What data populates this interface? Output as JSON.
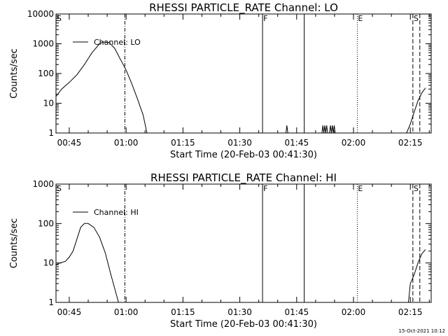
{
  "footer": {
    "timestamp": "15-Oct-2021 10:12"
  },
  "chart_data": [
    {
      "type": "line",
      "title": "RHESSI PARTICLE_RATE Channel: LO",
      "xlabel": "Start Time (20-Feb-03 00:41:30)",
      "ylabel": "Counts/sec",
      "yscale": "log",
      "xlim": [
        "00:41:30",
        "02:20:30"
      ],
      "ylim": [
        1,
        10000
      ],
      "x_ticks": [
        "00:45",
        "01:00",
        "01:15",
        "01:30",
        "01:45",
        "02:00",
        "02:15"
      ],
      "y_ticks": [
        "1",
        "10",
        "100",
        "1000",
        "10000"
      ],
      "legend": {
        "position": "top-left",
        "entries": [
          "Channel: LO"
        ]
      },
      "series": [
        {
          "name": "Channel: LO",
          "segments": [
            [
              [
                "00:41:30",
                17
              ],
              [
                "00:43:00",
                30
              ],
              [
                "00:45:00",
                50
              ],
              [
                "00:47:00",
                90
              ],
              [
                "00:49:00",
                200
              ],
              [
                "00:51:00",
                500
              ],
              [
                "00:53:00",
                1000
              ],
              [
                "00:54:00",
                1150
              ],
              [
                "00:55:30",
                1100
              ],
              [
                "00:57:00",
                700
              ],
              [
                "00:58:30",
                300
              ],
              [
                "01:00:00",
                130
              ],
              [
                "01:01:30",
                45
              ],
              [
                "01:03:00",
                14
              ],
              [
                "01:04:30",
                4
              ],
              [
                "01:05:30",
                1
              ]
            ],
            [
              [
                "01:42:10",
                1
              ],
              [
                "01:42:25",
                1.8
              ],
              [
                "01:42:40",
                1
              ]
            ],
            [
              [
                "01:51:40",
                1
              ],
              [
                "01:51:55",
                1.8
              ],
              [
                "01:52:10",
                1
              ],
              [
                "01:52:25",
                1.8
              ],
              [
                "01:52:40",
                1
              ],
              [
                "01:52:55",
                1.8
              ],
              [
                "01:53:10",
                1
              ]
            ],
            [
              [
                "01:53:40",
                1
              ],
              [
                "01:53:55",
                1.8
              ],
              [
                "01:54:10",
                1
              ],
              [
                "01:54:25",
                1.8
              ],
              [
                "01:54:40",
                1
              ],
              [
                "01:54:55",
                1.8
              ],
              [
                "01:55:10",
                1
              ]
            ],
            [
              [
                "02:14:00",
                1
              ],
              [
                "02:15:00",
                2
              ],
              [
                "02:16:00",
                5
              ],
              [
                "02:17:00",
                12
              ],
              [
                "02:18:00",
                22
              ],
              [
                "02:19:00",
                33
              ]
            ]
          ]
        }
      ],
      "markers": [
        {
          "label": "S",
          "time": "00:41:30",
          "style": "dashed"
        },
        {
          "label": "",
          "time": "00:59:40",
          "style": "dashdot"
        },
        {
          "label": "F",
          "time": "01:36:00",
          "style": "solid"
        },
        {
          "label": "",
          "time": "01:47:00",
          "style": "solid"
        },
        {
          "label": "E",
          "time": "02:01:00",
          "style": "dotted"
        },
        {
          "label": "S",
          "time": "02:15:40",
          "style": "dashed"
        },
        {
          "label": "",
          "time": "02:17:30",
          "style": "dashed"
        }
      ]
    },
    {
      "type": "line",
      "title": "RHESSI PARTICLE_RATE Channel: HI",
      "xlabel": "Start Time (20-Feb-03 00:41:30)",
      "ylabel": "Counts/sec",
      "yscale": "log",
      "xlim": [
        "00:41:30",
        "02:20:30"
      ],
      "ylim": [
        1,
        1000
      ],
      "x_ticks": [
        "00:45",
        "01:00",
        "01:15",
        "01:30",
        "01:45",
        "02:00",
        "02:15"
      ],
      "y_ticks": [
        "1",
        "10",
        "100",
        "1000"
      ],
      "legend": {
        "position": "top-left",
        "entries": [
          "Channel: HI"
        ]
      },
      "series": [
        {
          "name": "Channel: HI",
          "segments": [
            [
              [
                "00:41:30",
                9
              ],
              [
                "00:42:30",
                10
              ],
              [
                "00:44:00",
                11
              ],
              [
                "00:45:00",
                14
              ],
              [
                "00:46:00",
                20
              ],
              [
                "00:47:00",
                40
              ],
              [
                "00:48:00",
                80
              ],
              [
                "00:49:00",
                100
              ],
              [
                "00:50:00",
                100
              ],
              [
                "00:51:30",
                80
              ],
              [
                "00:53:00",
                45
              ],
              [
                "00:54:30",
                18
              ],
              [
                "00:56:00",
                5
              ],
              [
                "00:57:30",
                1.5
              ],
              [
                "00:58:00",
                1
              ]
            ],
            [
              [
                "02:14:30",
                1
              ],
              [
                "02:15:00",
                3
              ],
              [
                "02:16:00",
                5
              ],
              [
                "02:17:00",
                10
              ],
              [
                "02:18:00",
                17
              ],
              [
                "02:19:00",
                22
              ]
            ]
          ]
        }
      ],
      "markers": [
        {
          "label": "S",
          "time": "00:41:30",
          "style": "dashed"
        },
        {
          "label": "",
          "time": "00:59:40",
          "style": "dashdot"
        },
        {
          "label": "F",
          "time": "01:36:00",
          "style": "solid"
        },
        {
          "label": "",
          "time": "01:47:00",
          "style": "solid"
        },
        {
          "label": "E",
          "time": "02:01:00",
          "style": "dotted"
        },
        {
          "label": "S",
          "time": "02:15:40",
          "style": "dashed"
        },
        {
          "label": "",
          "time": "02:17:30",
          "style": "dashed"
        }
      ]
    }
  ]
}
